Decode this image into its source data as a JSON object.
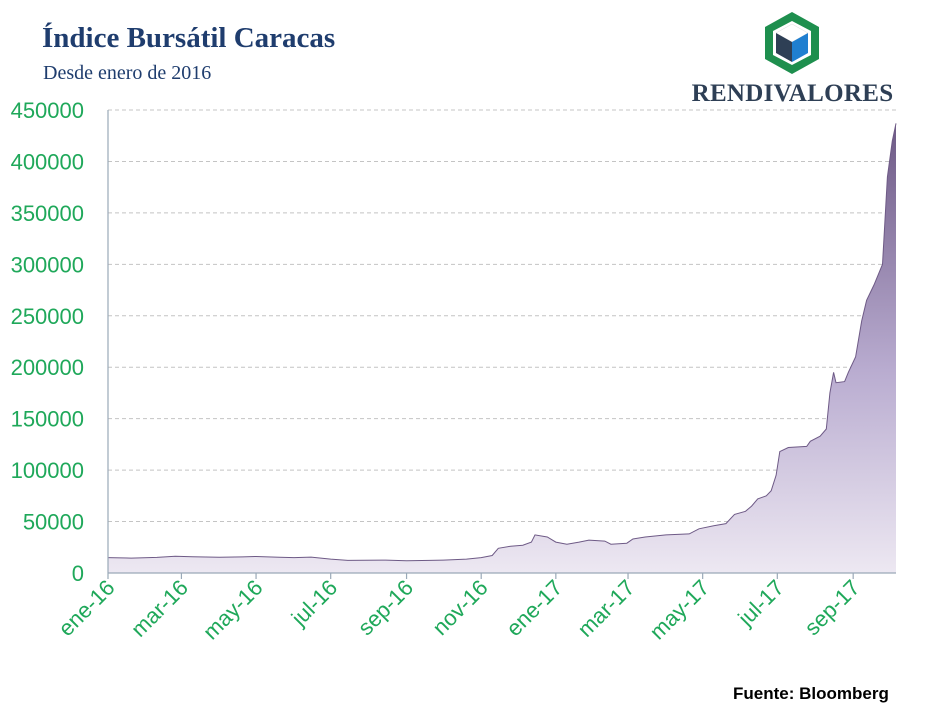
{
  "title": "Índice Bursátil Caracas",
  "subtitle": "Desde enero de 2016",
  "brand": {
    "name": "RENDIVALORES",
    "logo_icon": "cube-hexagon-icon",
    "colors": {
      "hexagon": "#1e8f4e",
      "cube_top": "#ffffff",
      "cube_left": "#2e3f55",
      "cube_right": "#1f7fd0"
    }
  },
  "source": "Fuente: Bloomberg",
  "colors": {
    "axis_text": "#1fa85a",
    "title": "#1f3d6e",
    "area_top": "#6e5a86",
    "area_bottom": "#ede8f2",
    "grid": "#bfbfbf"
  },
  "chart_data": {
    "type": "area",
    "title": "Índice Bursátil Caracas",
    "subtitle": "Desde enero de 2016",
    "xlabel": "",
    "ylabel": "",
    "ylim": [
      0,
      450000
    ],
    "yticks": [
      0,
      50000,
      100000,
      150000,
      200000,
      250000,
      300000,
      350000,
      400000,
      450000
    ],
    "xtick_labels": [
      "ene-16",
      "mar-16",
      "may-16",
      "jul-16",
      "sep-16",
      "nov-16",
      "ene-17",
      "mar-17",
      "may-17",
      "jul-17",
      "sep-17"
    ],
    "xtick_dates": [
      "2016-01-01",
      "2016-03-01",
      "2016-05-01",
      "2016-07-01",
      "2016-09-01",
      "2016-11-01",
      "2017-01-01",
      "2017-03-01",
      "2017-05-01",
      "2017-07-01",
      "2017-09-01"
    ],
    "xlim": [
      "2016-01-01",
      "2017-10-06"
    ],
    "grid": "horizontal dashed",
    "legend": "none",
    "series": [
      {
        "points": [
          [
            "2016-01-01",
            15000
          ],
          [
            "2016-01-20",
            14500
          ],
          [
            "2016-02-10",
            15200
          ],
          [
            "2016-02-25",
            16200
          ],
          [
            "2016-03-10",
            15800
          ],
          [
            "2016-04-01",
            15300
          ],
          [
            "2016-04-20",
            15600
          ],
          [
            "2016-05-01",
            16000
          ],
          [
            "2016-05-20",
            15400
          ],
          [
            "2016-06-01",
            15000
          ],
          [
            "2016-06-15",
            15500
          ],
          [
            "2016-07-01",
            13500
          ],
          [
            "2016-07-15",
            12200
          ],
          [
            "2016-08-15",
            12500
          ],
          [
            "2016-09-01",
            12000
          ],
          [
            "2016-09-20",
            12200
          ],
          [
            "2016-10-01",
            12500
          ],
          [
            "2016-10-20",
            13500
          ],
          [
            "2016-11-01",
            15000
          ],
          [
            "2016-11-10",
            17000
          ],
          [
            "2016-11-15",
            24000
          ],
          [
            "2016-11-25",
            26000
          ],
          [
            "2016-12-05",
            27000
          ],
          [
            "2016-12-12",
            30000
          ],
          [
            "2016-12-15",
            37000
          ],
          [
            "2016-12-25",
            35000
          ],
          [
            "2017-01-01",
            30000
          ],
          [
            "2017-01-10",
            28000
          ],
          [
            "2017-01-20",
            30000
          ],
          [
            "2017-01-28",
            32000
          ],
          [
            "2017-02-10",
            31000
          ],
          [
            "2017-02-15",
            28000
          ],
          [
            "2017-02-28",
            29000
          ],
          [
            "2017-03-05",
            33000
          ],
          [
            "2017-03-15",
            35000
          ],
          [
            "2017-04-01",
            37000
          ],
          [
            "2017-04-20",
            38000
          ],
          [
            "2017-04-28",
            43000
          ],
          [
            "2017-05-10",
            46000
          ],
          [
            "2017-05-20",
            48000
          ],
          [
            "2017-05-27",
            57000
          ],
          [
            "2017-06-05",
            60000
          ],
          [
            "2017-06-10",
            65000
          ],
          [
            "2017-06-15",
            72000
          ],
          [
            "2017-06-22",
            75000
          ],
          [
            "2017-06-26",
            80000
          ],
          [
            "2017-06-30",
            95000
          ],
          [
            "2017-07-03",
            118000
          ],
          [
            "2017-07-10",
            122000
          ],
          [
            "2017-07-25",
            123000
          ],
          [
            "2017-07-28",
            128000
          ],
          [
            "2017-08-05",
            133000
          ],
          [
            "2017-08-10",
            140000
          ],
          [
            "2017-08-13",
            175000
          ],
          [
            "2017-08-16",
            195000
          ],
          [
            "2017-08-18",
            185000
          ],
          [
            "2017-08-25",
            186000
          ],
          [
            "2017-08-28",
            195000
          ],
          [
            "2017-09-03",
            210000
          ],
          [
            "2017-09-08",
            245000
          ],
          [
            "2017-09-12",
            265000
          ],
          [
            "2017-09-18",
            280000
          ],
          [
            "2017-09-25",
            300000
          ],
          [
            "2017-09-29",
            385000
          ],
          [
            "2017-10-03",
            420000
          ],
          [
            "2017-10-06",
            437000
          ]
        ]
      }
    ]
  }
}
